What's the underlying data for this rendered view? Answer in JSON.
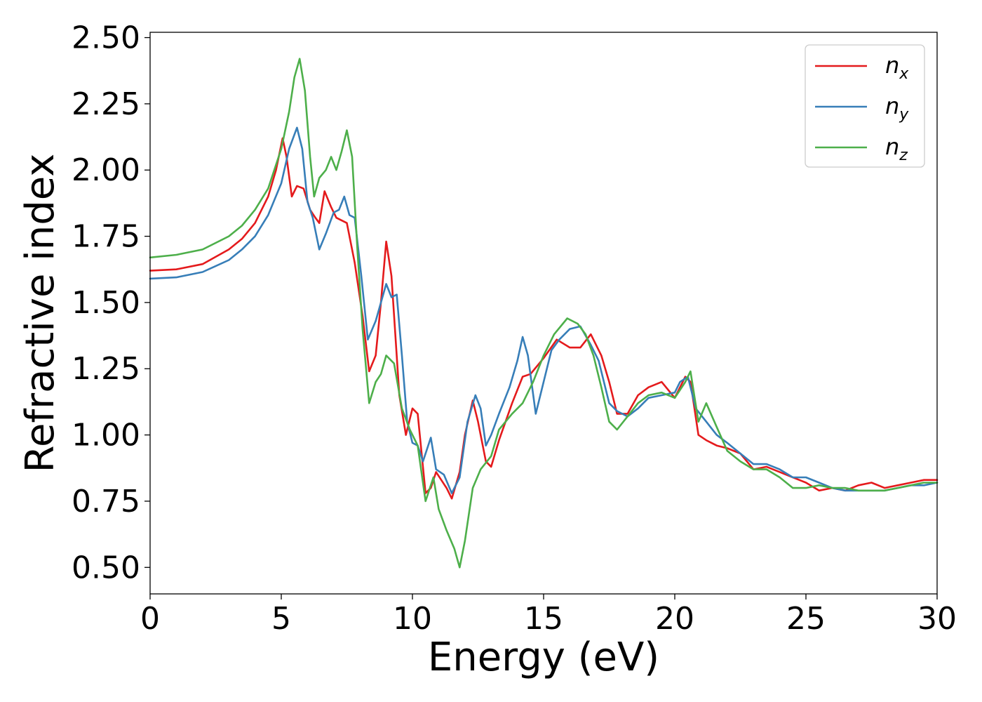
{
  "chart_data": {
    "type": "line",
    "title": "",
    "xlabel": "Energy (eV)",
    "ylabel": "Refractive index",
    "xlim": [
      0,
      30
    ],
    "ylim": [
      0.4,
      2.52
    ],
    "xticks": [
      0,
      5,
      10,
      15,
      20,
      25,
      30
    ],
    "yticks": [
      0.5,
      0.75,
      1.0,
      1.25,
      1.5,
      1.75,
      2.0,
      2.25,
      2.5
    ],
    "xtick_labels": [
      "0",
      "5",
      "10",
      "15",
      "20",
      "25",
      "30"
    ],
    "ytick_labels": [
      "0.50",
      "0.75",
      "1.00",
      "1.25",
      "1.50",
      "1.75",
      "2.00",
      "2.25",
      "2.50"
    ],
    "grid": false,
    "legend_position": "top-right",
    "series": [
      {
        "name": "n_x",
        "label_base": "n",
        "label_sub": "x",
        "color": "#e41a1c",
        "points": [
          [
            0,
            1.62
          ],
          [
            1,
            1.625
          ],
          [
            2,
            1.645
          ],
          [
            3,
            1.7
          ],
          [
            3.5,
            1.74
          ],
          [
            4,
            1.8
          ],
          [
            4.5,
            1.9
          ],
          [
            4.8,
            2.0
          ],
          [
            5.05,
            2.12
          ],
          [
            5.2,
            2.05
          ],
          [
            5.4,
            1.9
          ],
          [
            5.6,
            1.94
          ],
          [
            5.85,
            1.93
          ],
          [
            6.1,
            1.85
          ],
          [
            6.3,
            1.82
          ],
          [
            6.45,
            1.8
          ],
          [
            6.65,
            1.92
          ],
          [
            6.9,
            1.86
          ],
          [
            7.1,
            1.82
          ],
          [
            7.5,
            1.8
          ],
          [
            7.8,
            1.65
          ],
          [
            8.1,
            1.45
          ],
          [
            8.35,
            1.24
          ],
          [
            8.6,
            1.3
          ],
          [
            8.8,
            1.5
          ],
          [
            9.0,
            1.73
          ],
          [
            9.2,
            1.6
          ],
          [
            9.5,
            1.15
          ],
          [
            9.75,
            1.0
          ],
          [
            10.0,
            1.1
          ],
          [
            10.2,
            1.08
          ],
          [
            10.5,
            0.78
          ],
          [
            10.7,
            0.8
          ],
          [
            10.9,
            0.86
          ],
          [
            11.1,
            0.83
          ],
          [
            11.3,
            0.8
          ],
          [
            11.5,
            0.76
          ],
          [
            11.8,
            0.86
          ],
          [
            12.0,
            1.0
          ],
          [
            12.3,
            1.13
          ],
          [
            12.5,
            1.05
          ],
          [
            12.8,
            0.9
          ],
          [
            13.0,
            0.88
          ],
          [
            13.3,
            0.98
          ],
          [
            13.8,
            1.12
          ],
          [
            14.2,
            1.22
          ],
          [
            14.5,
            1.23
          ],
          [
            15.0,
            1.29
          ],
          [
            15.5,
            1.36
          ],
          [
            16.0,
            1.33
          ],
          [
            16.4,
            1.33
          ],
          [
            16.8,
            1.38
          ],
          [
            17.2,
            1.3
          ],
          [
            17.5,
            1.2
          ],
          [
            17.8,
            1.08
          ],
          [
            18.2,
            1.08
          ],
          [
            18.6,
            1.15
          ],
          [
            19.0,
            1.18
          ],
          [
            19.5,
            1.2
          ],
          [
            20.0,
            1.14
          ],
          [
            20.4,
            1.22
          ],
          [
            20.6,
            1.2
          ],
          [
            20.9,
            1.0
          ],
          [
            21.2,
            0.98
          ],
          [
            21.6,
            0.96
          ],
          [
            22.0,
            0.95
          ],
          [
            22.5,
            0.93
          ],
          [
            23.0,
            0.87
          ],
          [
            23.5,
            0.88
          ],
          [
            24.0,
            0.86
          ],
          [
            24.5,
            0.84
          ],
          [
            25.0,
            0.82
          ],
          [
            25.5,
            0.79
          ],
          [
            26.0,
            0.8
          ],
          [
            26.5,
            0.79
          ],
          [
            27.0,
            0.81
          ],
          [
            27.5,
            0.82
          ],
          [
            28.0,
            0.8
          ],
          [
            28.5,
            0.81
          ],
          [
            29.0,
            0.82
          ],
          [
            29.5,
            0.83
          ],
          [
            30.0,
            0.83
          ]
        ]
      },
      {
        "name": "n_y",
        "label_base": "n",
        "label_sub": "y",
        "color": "#377eb8",
        "points": [
          [
            0,
            1.59
          ],
          [
            1,
            1.595
          ],
          [
            2,
            1.615
          ],
          [
            3,
            1.66
          ],
          [
            3.5,
            1.7
          ],
          [
            4,
            1.75
          ],
          [
            4.5,
            1.83
          ],
          [
            5.0,
            1.95
          ],
          [
            5.3,
            2.08
          ],
          [
            5.6,
            2.16
          ],
          [
            5.8,
            2.08
          ],
          [
            6.0,
            1.88
          ],
          [
            6.2,
            1.82
          ],
          [
            6.45,
            1.7
          ],
          [
            6.7,
            1.76
          ],
          [
            7.0,
            1.84
          ],
          [
            7.2,
            1.85
          ],
          [
            7.4,
            1.9
          ],
          [
            7.6,
            1.83
          ],
          [
            7.8,
            1.82
          ],
          [
            8.05,
            1.6
          ],
          [
            8.3,
            1.36
          ],
          [
            8.6,
            1.43
          ],
          [
            8.8,
            1.5
          ],
          [
            9.0,
            1.57
          ],
          [
            9.2,
            1.52
          ],
          [
            9.4,
            1.53
          ],
          [
            9.6,
            1.3
          ],
          [
            9.8,
            1.05
          ],
          [
            10.0,
            0.97
          ],
          [
            10.2,
            0.96
          ],
          [
            10.4,
            0.9
          ],
          [
            10.7,
            0.99
          ],
          [
            10.9,
            0.87
          ],
          [
            11.2,
            0.85
          ],
          [
            11.5,
            0.78
          ],
          [
            11.8,
            0.84
          ],
          [
            12.1,
            1.05
          ],
          [
            12.4,
            1.15
          ],
          [
            12.6,
            1.1
          ],
          [
            12.8,
            0.96
          ],
          [
            13.0,
            1.0
          ],
          [
            13.3,
            1.08
          ],
          [
            13.7,
            1.18
          ],
          [
            14.0,
            1.28
          ],
          [
            14.2,
            1.37
          ],
          [
            14.4,
            1.3
          ],
          [
            14.7,
            1.08
          ],
          [
            15.0,
            1.2
          ],
          [
            15.3,
            1.32
          ],
          [
            15.6,
            1.36
          ],
          [
            16.0,
            1.4
          ],
          [
            16.4,
            1.41
          ],
          [
            16.8,
            1.34
          ],
          [
            17.1,
            1.28
          ],
          [
            17.5,
            1.12
          ],
          [
            17.8,
            1.09
          ],
          [
            18.2,
            1.07
          ],
          [
            18.6,
            1.1
          ],
          [
            19.0,
            1.14
          ],
          [
            19.5,
            1.15
          ],
          [
            20.0,
            1.16
          ],
          [
            20.2,
            1.2
          ],
          [
            20.5,
            1.22
          ],
          [
            20.8,
            1.1
          ],
          [
            21.2,
            1.05
          ],
          [
            21.6,
            1.0
          ],
          [
            22.0,
            0.97
          ],
          [
            22.5,
            0.93
          ],
          [
            23.0,
            0.89
          ],
          [
            23.5,
            0.89
          ],
          [
            24.0,
            0.87
          ],
          [
            24.5,
            0.84
          ],
          [
            25.0,
            0.84
          ],
          [
            25.5,
            0.82
          ],
          [
            26.0,
            0.8
          ],
          [
            26.5,
            0.79
          ],
          [
            27.0,
            0.79
          ],
          [
            27.5,
            0.79
          ],
          [
            28.0,
            0.79
          ],
          [
            28.5,
            0.8
          ],
          [
            29.0,
            0.81
          ],
          [
            29.5,
            0.81
          ],
          [
            30.0,
            0.82
          ]
        ]
      },
      {
        "name": "n_z",
        "label_base": "n",
        "label_sub": "z",
        "color": "#4daf4a",
        "points": [
          [
            0,
            1.67
          ],
          [
            1,
            1.68
          ],
          [
            2,
            1.7
          ],
          [
            3,
            1.75
          ],
          [
            3.5,
            1.79
          ],
          [
            4,
            1.85
          ],
          [
            4.5,
            1.93
          ],
          [
            5.0,
            2.08
          ],
          [
            5.3,
            2.22
          ],
          [
            5.5,
            2.35
          ],
          [
            5.7,
            2.42
          ],
          [
            5.9,
            2.3
          ],
          [
            6.1,
            2.05
          ],
          [
            6.25,
            1.9
          ],
          [
            6.45,
            1.97
          ],
          [
            6.7,
            2.0
          ],
          [
            6.9,
            2.05
          ],
          [
            7.1,
            2.0
          ],
          [
            7.3,
            2.07
          ],
          [
            7.5,
            2.15
          ],
          [
            7.7,
            2.05
          ],
          [
            7.9,
            1.7
          ],
          [
            8.1,
            1.4
          ],
          [
            8.35,
            1.12
          ],
          [
            8.6,
            1.2
          ],
          [
            8.8,
            1.23
          ],
          [
            9.0,
            1.3
          ],
          [
            9.3,
            1.27
          ],
          [
            9.6,
            1.1
          ],
          [
            9.9,
            1.02
          ],
          [
            10.2,
            0.96
          ],
          [
            10.5,
            0.75
          ],
          [
            10.8,
            0.84
          ],
          [
            11.0,
            0.72
          ],
          [
            11.3,
            0.64
          ],
          [
            11.6,
            0.57
          ],
          [
            11.8,
            0.5
          ],
          [
            12.0,
            0.6
          ],
          [
            12.3,
            0.8
          ],
          [
            12.6,
            0.87
          ],
          [
            13.0,
            0.92
          ],
          [
            13.3,
            1.02
          ],
          [
            13.8,
            1.08
          ],
          [
            14.2,
            1.12
          ],
          [
            14.6,
            1.2
          ],
          [
            15.0,
            1.3
          ],
          [
            15.4,
            1.38
          ],
          [
            15.9,
            1.44
          ],
          [
            16.3,
            1.42
          ],
          [
            16.6,
            1.38
          ],
          [
            16.9,
            1.3
          ],
          [
            17.2,
            1.18
          ],
          [
            17.5,
            1.05
          ],
          [
            17.8,
            1.02
          ],
          [
            18.2,
            1.07
          ],
          [
            18.6,
            1.12
          ],
          [
            19.0,
            1.15
          ],
          [
            19.5,
            1.16
          ],
          [
            20.0,
            1.14
          ],
          [
            20.4,
            1.2
          ],
          [
            20.6,
            1.24
          ],
          [
            20.9,
            1.05
          ],
          [
            21.2,
            1.12
          ],
          [
            21.6,
            1.03
          ],
          [
            22.0,
            0.94
          ],
          [
            22.5,
            0.9
          ],
          [
            23.0,
            0.87
          ],
          [
            23.5,
            0.87
          ],
          [
            24.0,
            0.84
          ],
          [
            24.5,
            0.8
          ],
          [
            25.0,
            0.8
          ],
          [
            25.5,
            0.81
          ],
          [
            26.0,
            0.8
          ],
          [
            26.5,
            0.8
          ],
          [
            27.0,
            0.79
          ],
          [
            27.5,
            0.79
          ],
          [
            28.0,
            0.79
          ],
          [
            28.5,
            0.8
          ],
          [
            29.0,
            0.81
          ],
          [
            29.5,
            0.82
          ],
          [
            30.0,
            0.82
          ]
        ]
      }
    ]
  }
}
